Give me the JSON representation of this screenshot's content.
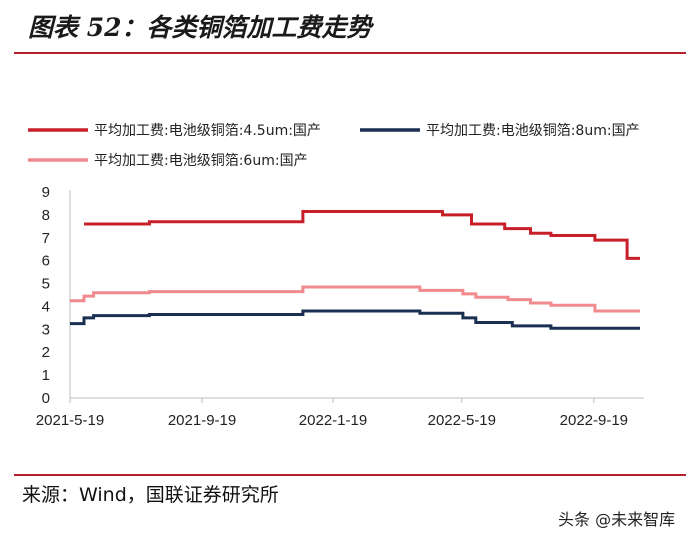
{
  "header": {
    "title": "图表 52：各类铜箔加工费走势"
  },
  "footer": {
    "source": "来源：Wind，国联证券研究所",
    "watermark": "头条 @未来智库"
  },
  "colors": {
    "s45": "#c8202b",
    "s8": "#1b2f52",
    "s6": "#f08a8c",
    "rule": "#b8202a"
  },
  "chart_data": {
    "type": "line",
    "title": "",
    "xlabel": "",
    "ylabel": "",
    "x_ticks": [
      "2021-5-19",
      "2021-9-19",
      "2022-1-19",
      "2022-5-19",
      "2022-9-19"
    ],
    "xlim": [
      "2021-05-19",
      "2022-11-01"
    ],
    "ylim": [
      0,
      9
    ],
    "y_ticks": [
      0,
      1,
      2,
      3,
      4,
      5,
      6,
      7,
      8,
      9
    ],
    "legend_position": "top",
    "series": [
      {
        "name": "平均加工费:电池级铜箔:4.5um:国产",
        "color_key": "s45",
        "step": true,
        "points": [
          [
            "2021-06-01",
            7.6
          ],
          [
            "2021-08-01",
            7.7
          ],
          [
            "2021-12-22",
            8.15
          ],
          [
            "2022-05-01",
            8.0
          ],
          [
            "2022-05-28",
            7.6
          ],
          [
            "2022-06-28",
            7.4
          ],
          [
            "2022-07-22",
            7.2
          ],
          [
            "2022-08-10",
            7.1
          ],
          [
            "2022-09-20",
            6.9
          ],
          [
            "2022-10-20",
            6.1
          ],
          [
            "2022-11-01",
            6.1
          ]
        ]
      },
      {
        "name": "平均加工费:电池级铜箔:8um:国产",
        "color_key": "s8",
        "step": true,
        "points": [
          [
            "2021-05-19",
            3.25
          ],
          [
            "2021-06-01",
            3.5
          ],
          [
            "2021-06-10",
            3.6
          ],
          [
            "2021-08-01",
            3.65
          ],
          [
            "2021-12-22",
            3.8
          ],
          [
            "2022-04-10",
            3.7
          ],
          [
            "2022-05-20",
            3.5
          ],
          [
            "2022-06-01",
            3.3
          ],
          [
            "2022-07-05",
            3.15
          ],
          [
            "2022-08-10",
            3.05
          ],
          [
            "2022-11-01",
            3.05
          ]
        ]
      },
      {
        "name": "平均加工费:电池级铜箔:6um:国产",
        "color_key": "s6",
        "step": true,
        "points": [
          [
            "2021-05-19",
            4.25
          ],
          [
            "2021-06-01",
            4.45
          ],
          [
            "2021-06-10",
            4.6
          ],
          [
            "2021-08-01",
            4.65
          ],
          [
            "2021-12-22",
            4.85
          ],
          [
            "2022-04-10",
            4.7
          ],
          [
            "2022-05-20",
            4.55
          ],
          [
            "2022-06-01",
            4.4
          ],
          [
            "2022-07-01",
            4.3
          ],
          [
            "2022-07-22",
            4.15
          ],
          [
            "2022-08-10",
            4.05
          ],
          [
            "2022-09-20",
            3.8
          ],
          [
            "2022-11-01",
            3.8
          ]
        ]
      }
    ]
  }
}
